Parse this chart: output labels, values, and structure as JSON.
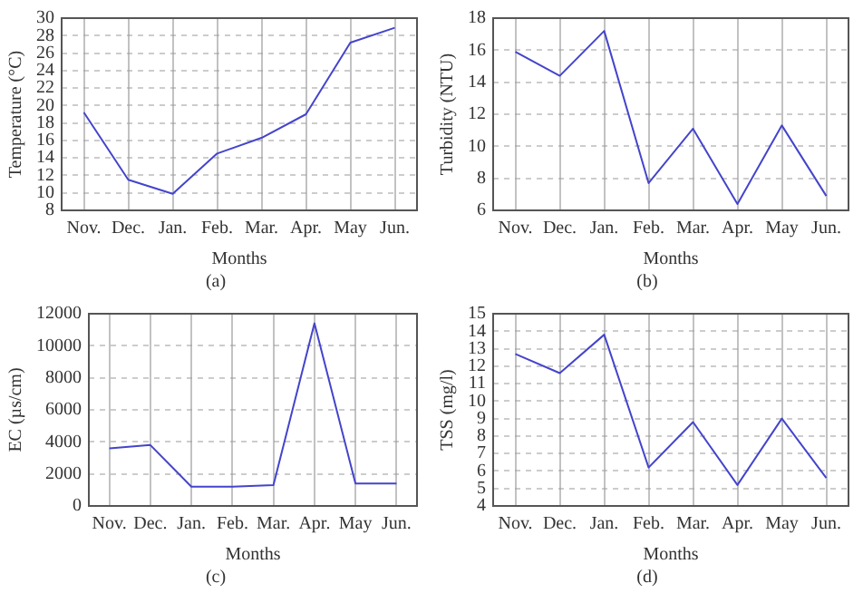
{
  "chart_data": [
    {
      "type": "line",
      "xlabel": "Months",
      "ylabel": "Temperature (°C)",
      "categories": [
        "Nov.",
        "Dec.",
        "Jan.",
        "Feb.",
        "Mar.",
        "Apr.",
        "May",
        "Jun."
      ],
      "series": [
        {
          "color": "#4444cc",
          "values": [
            19.2,
            11.5,
            9.9,
            14.5,
            16.3,
            19.0,
            27.2,
            28.9
          ]
        }
      ],
      "ylim": [
        8,
        30
      ],
      "yticks": [
        8,
        10,
        12,
        14,
        16,
        18,
        20,
        22,
        24,
        26,
        28,
        30
      ],
      "grid": true,
      "annotations": [
        "(a)"
      ]
    },
    {
      "type": "line",
      "xlabel": "Months",
      "ylabel": "Turbidity (NTU)",
      "categories": [
        "Nov.",
        "Dec.",
        "Jan.",
        "Feb.",
        "Mar.",
        "Apr.",
        "May",
        "Jun."
      ],
      "series": [
        {
          "color": "#4444cc",
          "values": [
            15.9,
            14.4,
            17.2,
            7.7,
            11.1,
            6.4,
            11.3,
            6.9
          ]
        }
      ],
      "ylim": [
        6,
        18
      ],
      "yticks": [
        6,
        8,
        10,
        12,
        14,
        16,
        18
      ],
      "grid": true,
      "annotations": [
        "(b)"
      ]
    },
    {
      "type": "line",
      "xlabel": "Months",
      "ylabel": "EC (µs/cm)",
      "categories": [
        "Nov.",
        "Dec.",
        "Jan.",
        "Feb.",
        "Mar.",
        "Apr.",
        "May",
        "Jun."
      ],
      "series": [
        {
          "color": "#4444cc",
          "values": [
            3600,
            3800,
            1200,
            1200,
            1300,
            11400,
            1400,
            1400
          ]
        }
      ],
      "ylim": [
        0,
        12000
      ],
      "yticks": [
        0,
        2000,
        4000,
        6000,
        8000,
        10000,
        12000
      ],
      "grid": true,
      "annotations": [
        "(c)"
      ]
    },
    {
      "type": "line",
      "xlabel": "Months",
      "ylabel": "TSS (mg/l)",
      "categories": [
        "Nov.",
        "Dec.",
        "Jan.",
        "Feb.",
        "Mar.",
        "Apr.",
        "May",
        "Jun."
      ],
      "series": [
        {
          "color": "#4444cc",
          "values": [
            12.7,
            11.6,
            13.8,
            6.2,
            8.8,
            5.2,
            9.0,
            5.6
          ]
        }
      ],
      "ylim": [
        4,
        15
      ],
      "yticks": [
        4,
        5,
        6,
        7,
        8,
        9,
        10,
        11,
        12,
        13,
        14,
        15
      ],
      "grid": true,
      "annotations": [
        "(d)"
      ]
    }
  ]
}
